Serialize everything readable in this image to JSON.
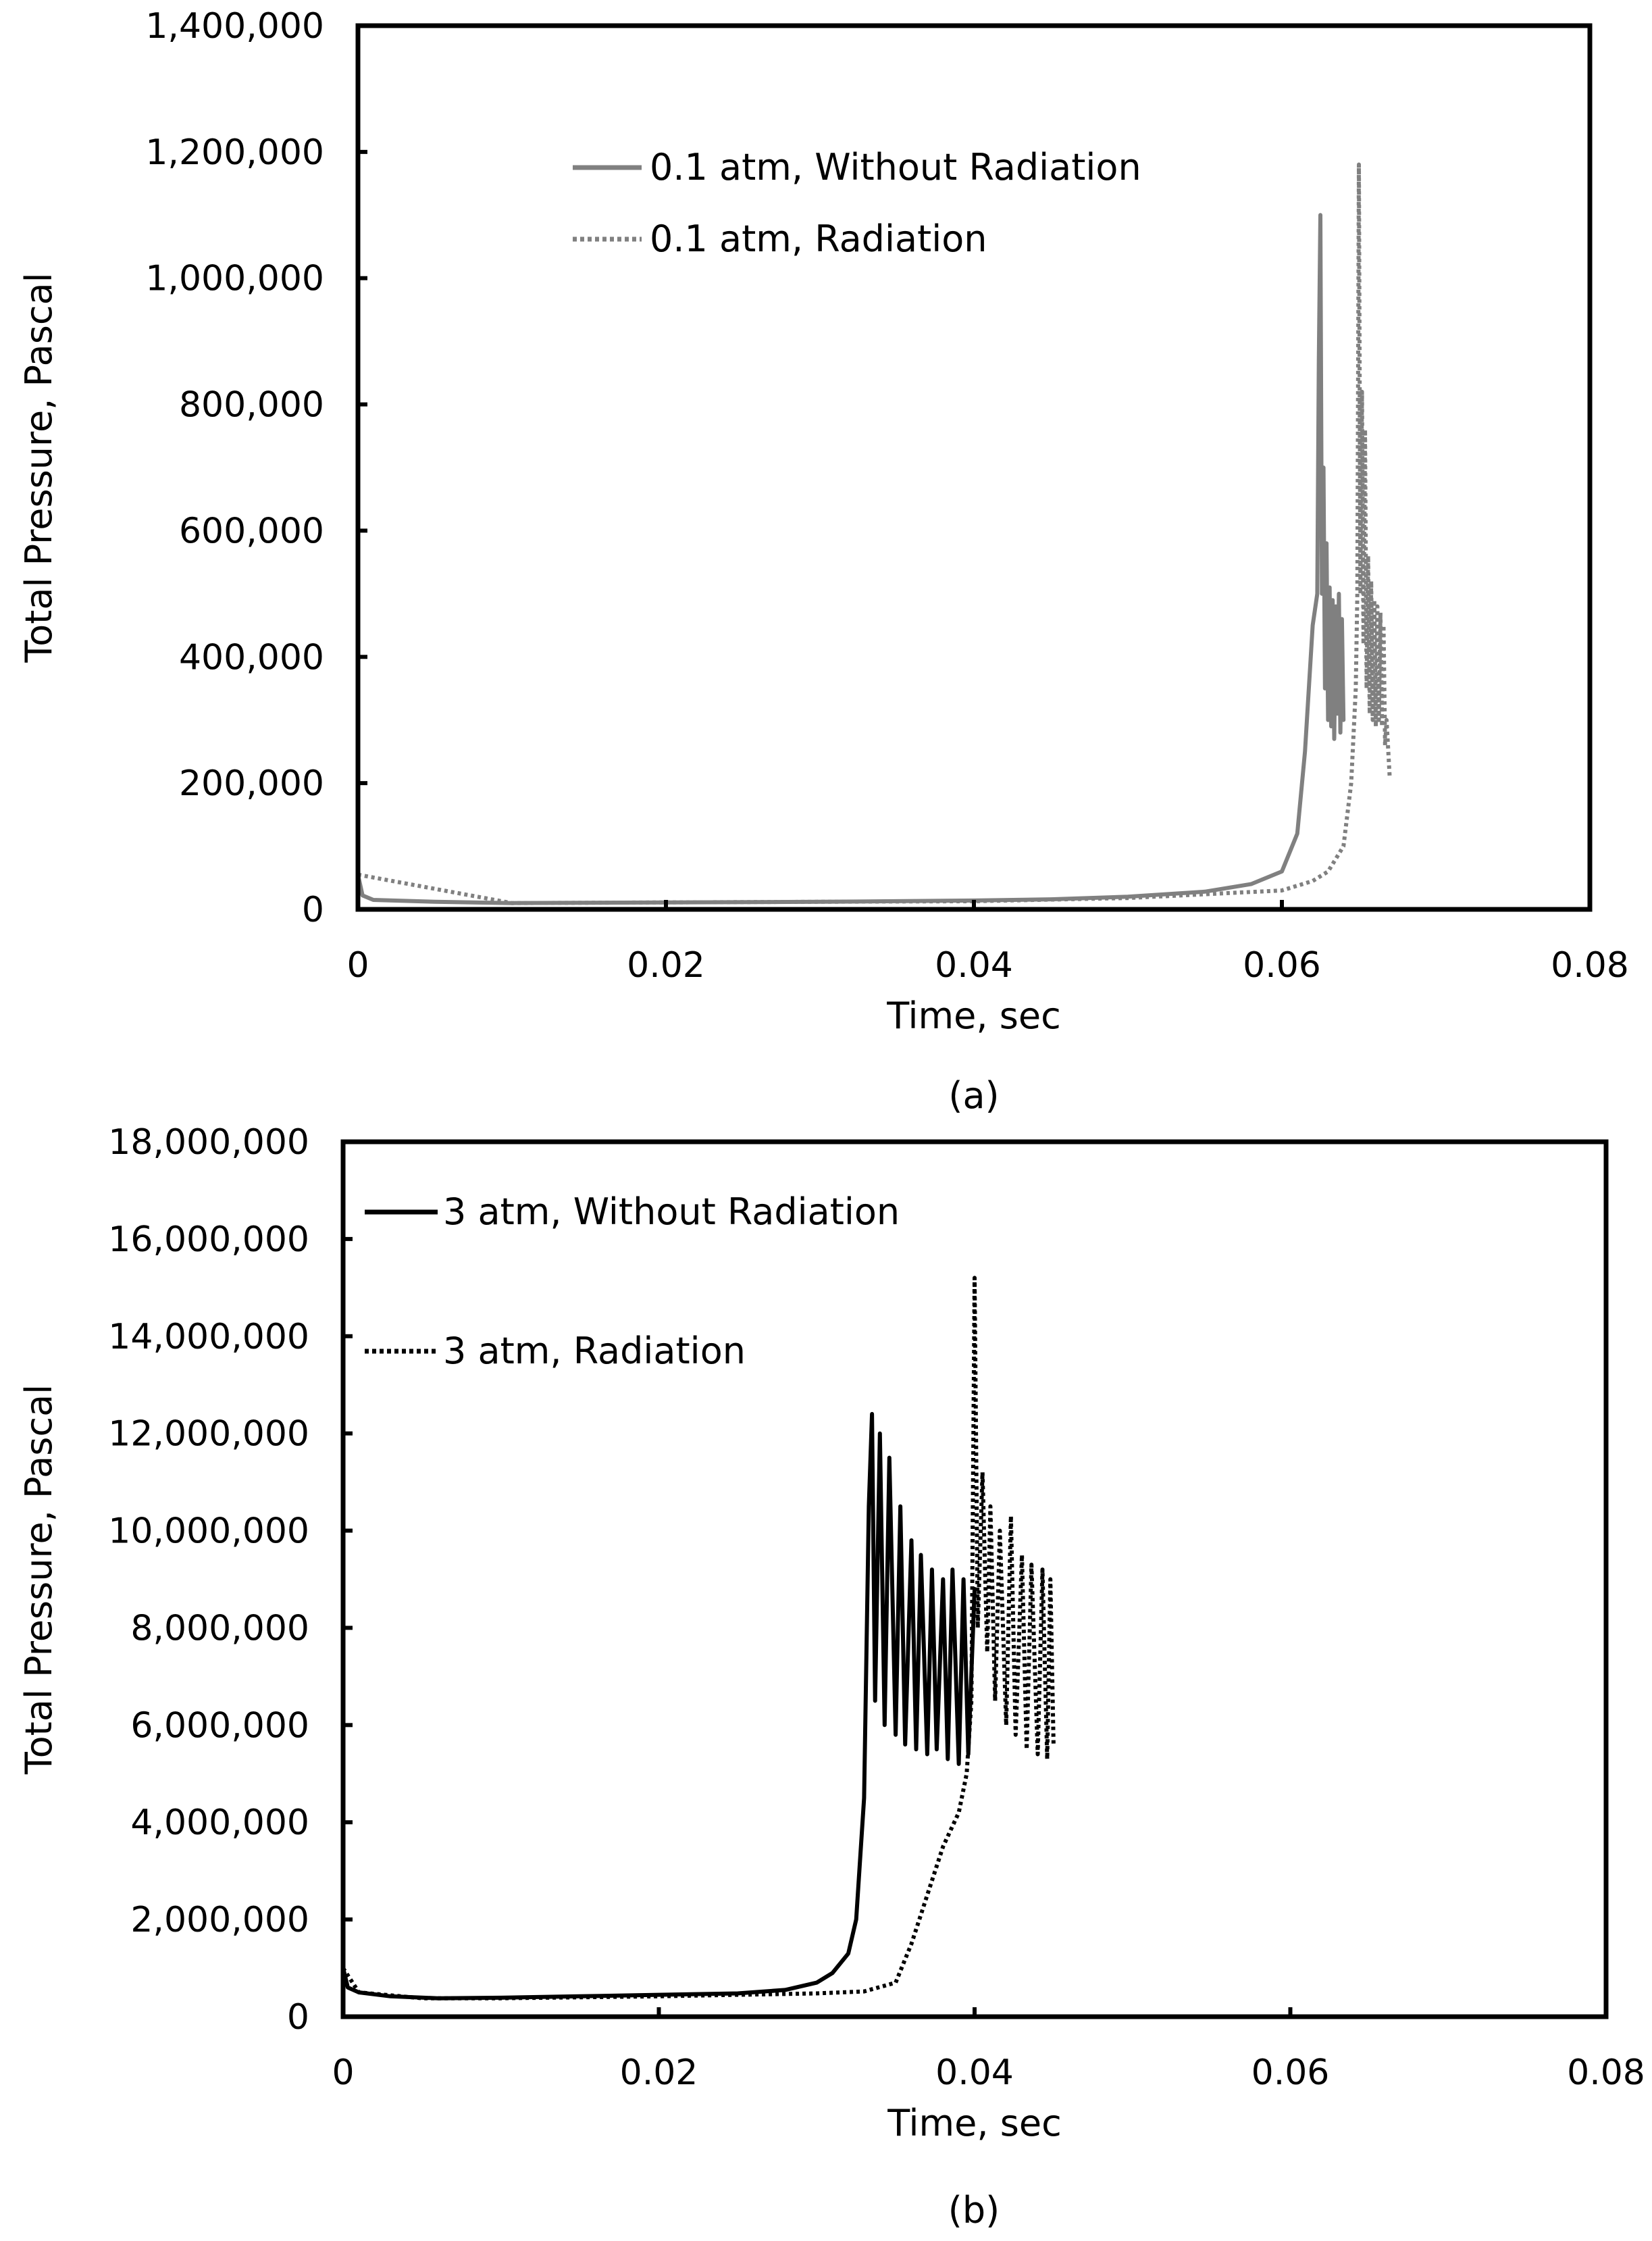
{
  "chart_data": [
    {
      "type": "line",
      "panel_label": "(a)",
      "xlabel": "Time, sec",
      "ylabel": "Total Pressure,  Pascal",
      "xlim": [
        0,
        0.08
      ],
      "ylim": [
        0,
        1400000
      ],
      "x_ticks": [
        "0",
        "0.02",
        "0.04",
        "0.06",
        "0.08"
      ],
      "y_ticks": [
        "0",
        "200,000",
        "400,000",
        "600,000",
        "800,000",
        "1,000,000",
        "1,200,000",
        "1,400,000"
      ],
      "legend_position": "top-center",
      "series": [
        {
          "name": "0.1 atm, Without Radiation",
          "color": "#808080",
          "style": "solid",
          "x": [
            0,
            0.0003,
            0.001,
            0.005,
            0.01,
            0.02,
            0.03,
            0.04,
            0.045,
            0.05,
            0.055,
            0.058,
            0.06,
            0.061,
            0.0615,
            0.062,
            0.0623,
            0.0624,
            0.0625,
            0.0626,
            0.0627,
            0.0628,
            0.0629,
            0.063,
            0.0631,
            0.0632,
            0.0633,
            0.0634,
            0.0635,
            0.0636,
            0.0637,
            0.0638,
            0.0639,
            0.064
          ],
          "y": [
            55000,
            22000,
            15000,
            12000,
            10000,
            11000,
            12000,
            14000,
            16000,
            20000,
            28000,
            40000,
            60000,
            120000,
            250000,
            450000,
            500000,
            870000,
            1100000,
            500000,
            700000,
            350000,
            580000,
            300000,
            510000,
            290000,
            490000,
            270000,
            480000,
            310000,
            500000,
            280000,
            460000,
            300000
          ]
        },
        {
          "name": "0.1 atm, Radiation",
          "color": "#808080",
          "style": "dotted",
          "x": [
            0,
            0.01,
            0.02,
            0.03,
            0.04,
            0.05,
            0.055,
            0.06,
            0.062,
            0.063,
            0.064,
            0.0645,
            0.0648,
            0.0649,
            0.065,
            0.0651,
            0.0652,
            0.0653,
            0.0654,
            0.0655,
            0.0656,
            0.0657,
            0.0658,
            0.0659,
            0.066,
            0.0661,
            0.0662,
            0.0663,
            0.0664,
            0.0665,
            0.0666,
            0.0667,
            0.0668,
            0.067
          ],
          "y": [
            55000,
            10000,
            11000,
            12000,
            13000,
            18000,
            24000,
            30000,
            45000,
            60000,
            100000,
            200000,
            350000,
            500000,
            1180000,
            500000,
            820000,
            420000,
            760000,
            350000,
            560000,
            310000,
            520000,
            300000,
            490000,
            290000,
            480000,
            300000,
            470000,
            290000,
            450000,
            260000,
            300000,
            210000
          ]
        }
      ]
    },
    {
      "type": "line",
      "panel_label": "(b)",
      "xlabel": "Time, sec",
      "ylabel": "Total Pressure,  Pascal",
      "xlim": [
        0,
        0.08
      ],
      "ylim": [
        0,
        18000000
      ],
      "x_ticks": [
        "0",
        "0.02",
        "0.04",
        "0.06",
        "0.08"
      ],
      "y_ticks": [
        "0",
        "2,000,000",
        "4,000,000",
        "6,000,000",
        "8,000,000",
        "10,000,000",
        "12,000,000",
        "14,000,000",
        "16,000,000",
        "18,000,000"
      ],
      "legend_position": "top-left",
      "series": [
        {
          "name": "3 atm, Without Radiation",
          "color": "#000000",
          "style": "solid",
          "x": [
            0,
            0.0003,
            0.001,
            0.003,
            0.006,
            0.01,
            0.015,
            0.02,
            0.025,
            0.028,
            0.03,
            0.031,
            0.032,
            0.0325,
            0.033,
            0.0333,
            0.0335,
            0.0337,
            0.034,
            0.0343,
            0.0346,
            0.035,
            0.0353,
            0.0356,
            0.036,
            0.0363,
            0.0366,
            0.037,
            0.0373,
            0.0376,
            0.038,
            0.0383,
            0.0386,
            0.039,
            0.0393,
            0.0396,
            0.04
          ],
          "y": [
            1000000,
            600000,
            500000,
            420000,
            380000,
            390000,
            420000,
            450000,
            480000,
            550000,
            700000,
            900000,
            1300000,
            2000000,
            4500000,
            10500000,
            12400000,
            6500000,
            12000000,
            6000000,
            11500000,
            5800000,
            10500000,
            5600000,
            9800000,
            5500000,
            9500000,
            5400000,
            9200000,
            5500000,
            9000000,
            5300000,
            9200000,
            5200000,
            9000000,
            5400000,
            8800000
          ]
        },
        {
          "name": "3 atm, Radiation",
          "color": "#000000",
          "style": "dotted",
          "x": [
            0,
            0.001,
            0.005,
            0.01,
            0.02,
            0.025,
            0.03,
            0.033,
            0.035,
            0.036,
            0.037,
            0.038,
            0.039,
            0.0395,
            0.0398,
            0.04,
            0.0402,
            0.0405,
            0.0408,
            0.041,
            0.0413,
            0.0416,
            0.042,
            0.0423,
            0.0426,
            0.043,
            0.0433,
            0.0436,
            0.044,
            0.0443,
            0.0446,
            0.0448,
            0.045
          ],
          "y": [
            1000000,
            500000,
            380000,
            380000,
            420000,
            450000,
            480000,
            520000,
            700000,
            1500000,
            2500000,
            3500000,
            4200000,
            5000000,
            6500000,
            15200000,
            8000000,
            11200000,
            7500000,
            10500000,
            6500000,
            10000000,
            6000000,
            10300000,
            5800000,
            9500000,
            5500000,
            9300000,
            5400000,
            9200000,
            5300000,
            9000000,
            5600000
          ]
        }
      ]
    }
  ]
}
